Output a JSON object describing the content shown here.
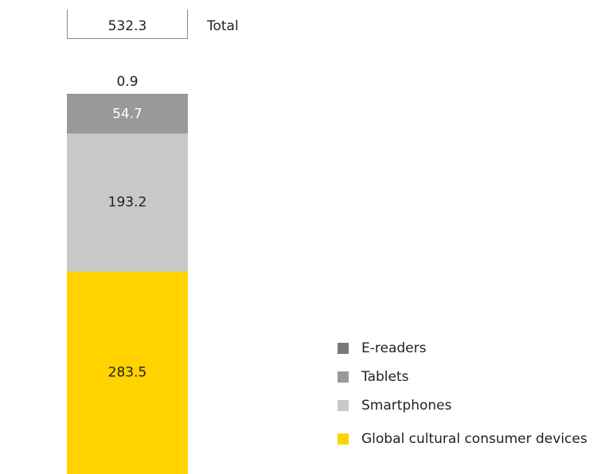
{
  "chart_data": {
    "type": "stacked_bar",
    "total": 532.3,
    "total_label": "Total",
    "series": [
      {
        "name": "Global cultural consumer devices",
        "color": "#ffd200",
        "values": [
          283.5
        ]
      },
      {
        "name": "Smartphones",
        "color": "#c8c8c8",
        "values": [
          193.2
        ]
      },
      {
        "name": "Tablets",
        "color": "#999999",
        "values": [
          54.7
        ]
      },
      {
        "name": "E-readers",
        "color": "#7a7a7a",
        "values": [
          0.9
        ]
      }
    ]
  }
}
